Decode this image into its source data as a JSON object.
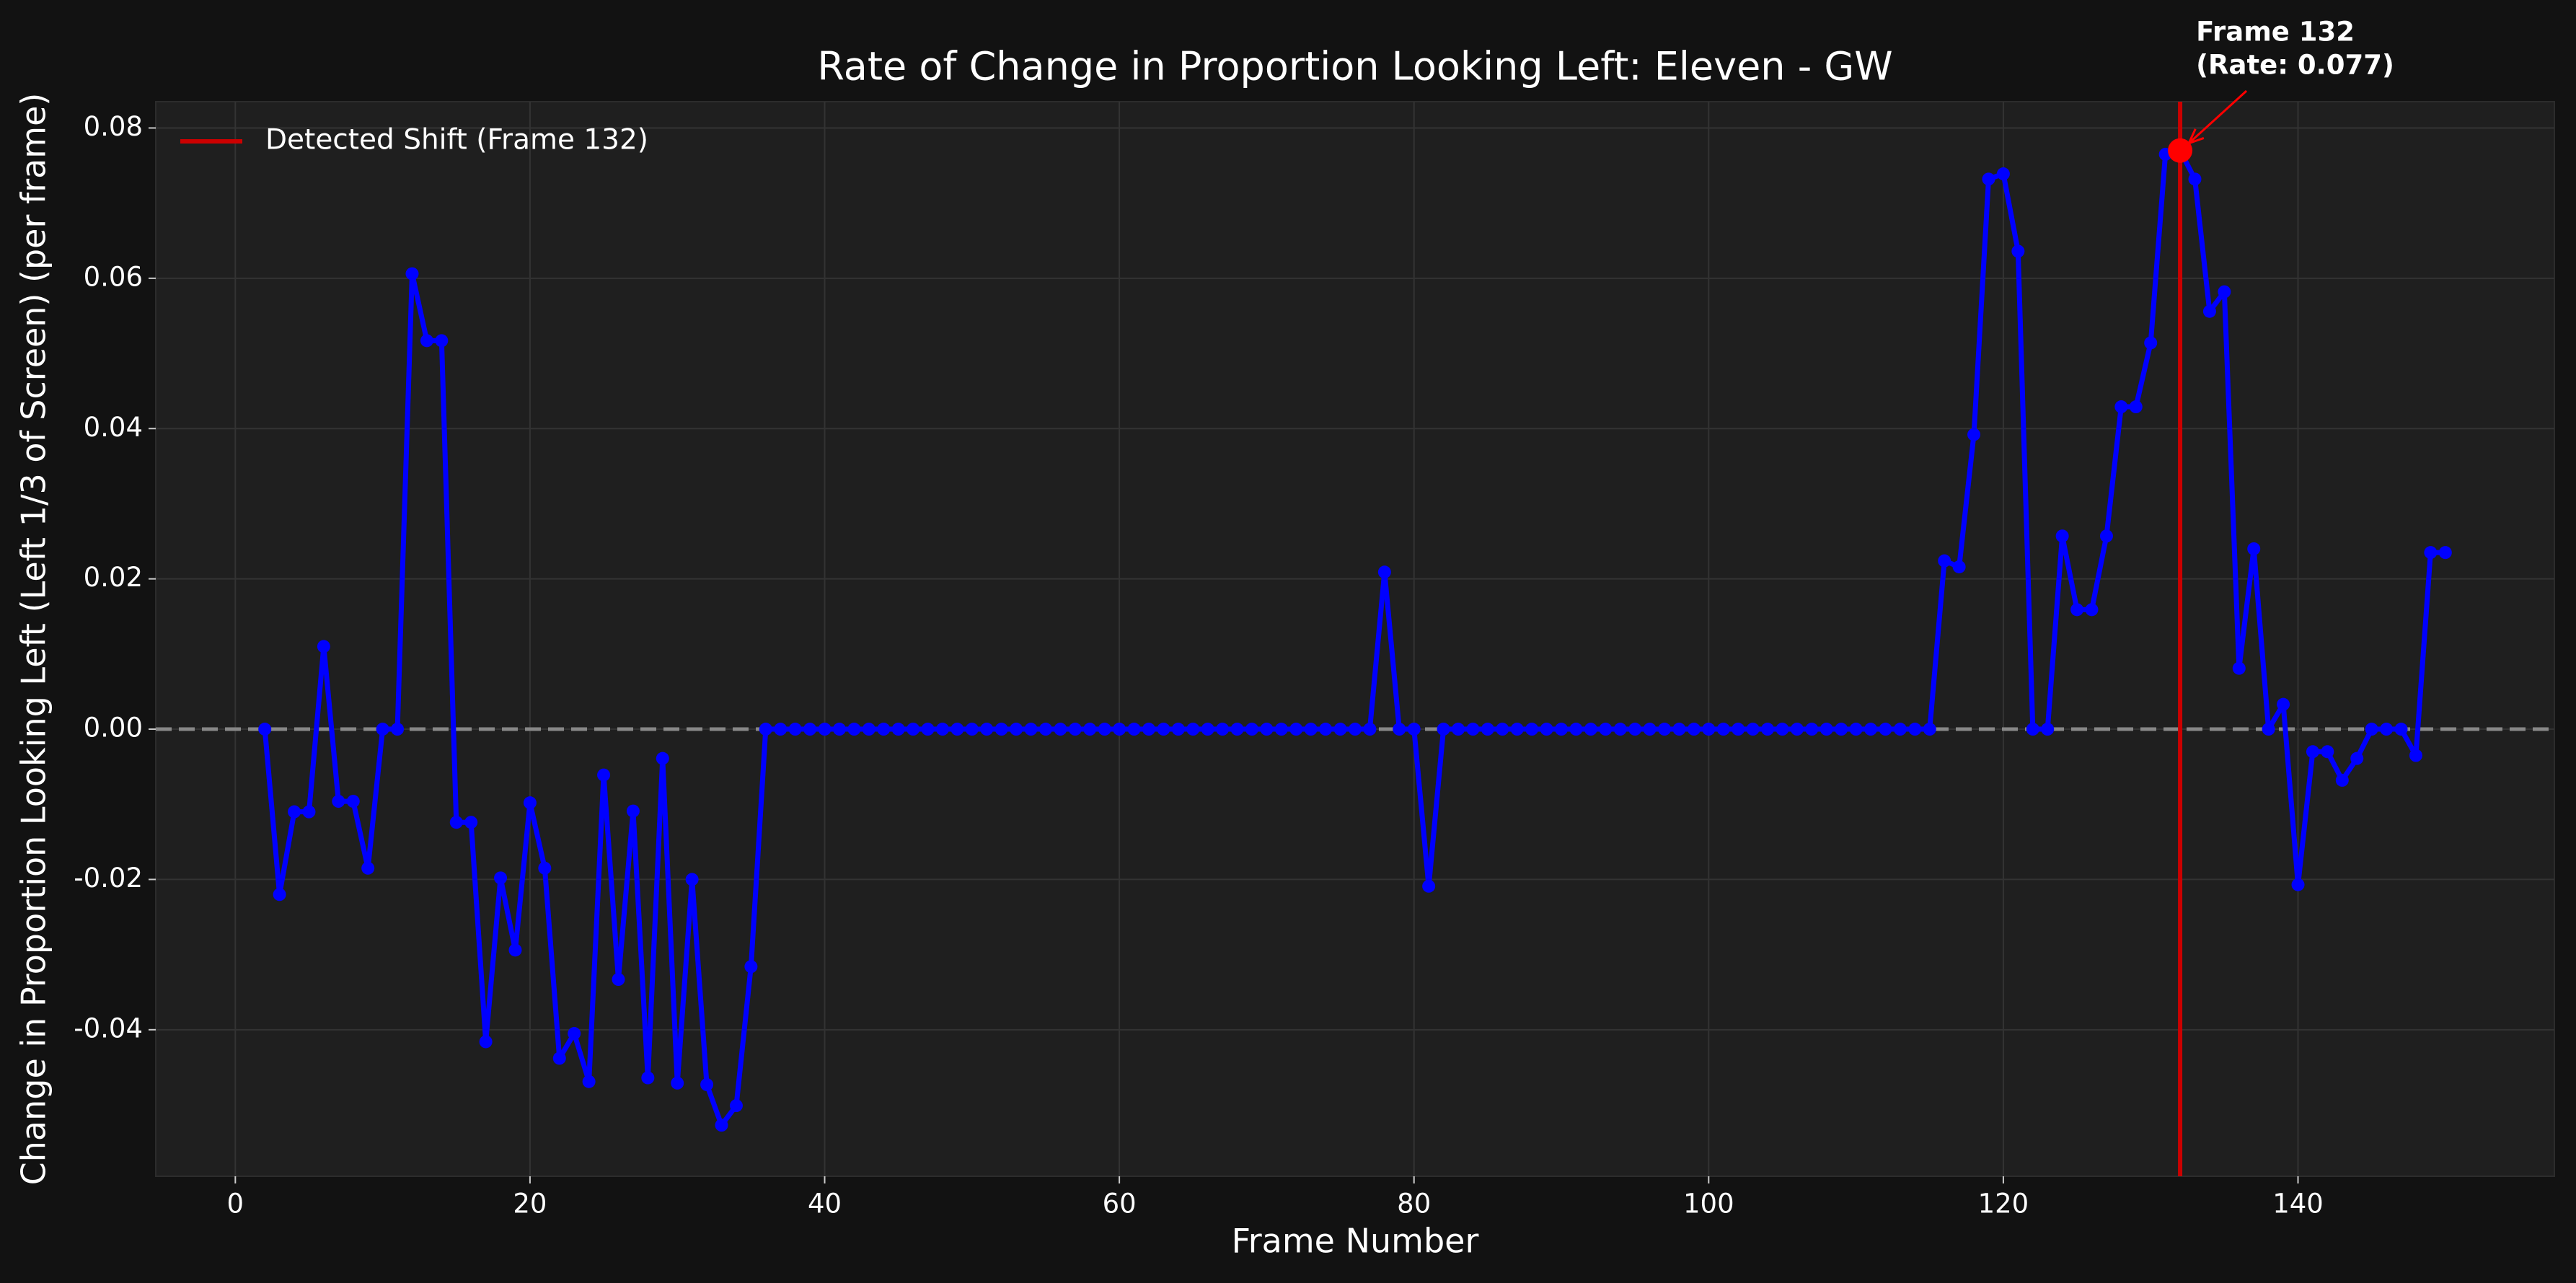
{
  "chart_data": {
    "type": "line",
    "title": "Rate of Change in Proportion Looking Left: Eleven - GW",
    "xlabel": "Frame Number",
    "ylabel": "Change in Proportion Looking Left (Left 1/3 of Screen) (per frame)",
    "x": [
      2,
      3,
      4,
      5,
      6,
      7,
      8,
      9,
      10,
      11,
      12,
      13,
      14,
      15,
      16,
      17,
      18,
      19,
      20,
      21,
      22,
      23,
      24,
      25,
      26,
      27,
      28,
      29,
      30,
      31,
      32,
      33,
      34,
      35,
      36,
      37,
      38,
      39,
      40,
      41,
      42,
      43,
      44,
      45,
      46,
      47,
      48,
      49,
      50,
      51,
      52,
      53,
      54,
      55,
      56,
      57,
      58,
      59,
      60,
      61,
      62,
      63,
      64,
      65,
      66,
      67,
      68,
      69,
      70,
      71,
      72,
      73,
      74,
      75,
      76,
      77,
      78,
      79,
      80,
      81,
      82,
      83,
      84,
      85,
      86,
      87,
      88,
      89,
      90,
      91,
      92,
      93,
      94,
      95,
      96,
      97,
      98,
      99,
      100,
      101,
      102,
      103,
      104,
      105,
      106,
      107,
      108,
      109,
      110,
      111,
      112,
      113,
      114,
      115,
      116,
      117,
      118,
      119,
      120,
      121,
      122,
      123,
      124,
      125,
      126,
      127,
      128,
      129,
      130,
      131,
      132,
      133,
      134,
      135,
      136,
      137,
      138,
      139,
      140,
      141,
      142,
      143,
      144,
      145,
      146,
      147,
      148,
      149,
      150
    ],
    "series": [
      {
        "color": "#0000ff",
        "values": [
          0,
          -0.022,
          -0.011,
          -0.011,
          0.011,
          -0.0096,
          -0.0096,
          -0.0185,
          0,
          0,
          0.0606,
          0.0517,
          0.0517,
          -0.0124,
          -0.0124,
          -0.0416,
          -0.0198,
          -0.0294,
          -0.0098,
          -0.0185,
          -0.0438,
          -0.0405,
          -0.0469,
          -0.0061,
          -0.0333,
          -0.0109,
          -0.0464,
          -0.0039,
          -0.0471,
          -0.02,
          -0.0473,
          -0.0527,
          -0.0501,
          -0.0316,
          0,
          0,
          0,
          0,
          0,
          0,
          0,
          0,
          0,
          0,
          0,
          0,
          0,
          0,
          0,
          0,
          0,
          0,
          0,
          0,
          0,
          0,
          0,
          0,
          0,
          0,
          0,
          0,
          0,
          0,
          0,
          0,
          0,
          0,
          0,
          0,
          0,
          0,
          0,
          0,
          0,
          0,
          0.0209,
          0,
          0,
          -0.0209,
          0,
          0,
          0,
          0,
          0,
          0,
          0,
          0,
          0,
          0,
          0,
          0,
          0,
          0,
          0,
          0,
          0,
          0,
          0,
          0,
          0,
          0,
          0,
          0,
          0,
          0,
          0,
          0,
          0,
          0,
          0,
          0,
          0,
          0,
          0.0224,
          0.0216,
          0.0392,
          0.0732,
          0.0739,
          0.0636,
          0,
          0,
          0.0257,
          0.0159,
          0.0159,
          0.0257,
          0.0429,
          0.0429,
          0.0514,
          0.0765,
          0.077,
          0.0732,
          0.0556,
          0.0582,
          0.0081,
          0.024,
          0,
          0.0033,
          -0.0207,
          -0.003,
          -0.003,
          -0.0068,
          -0.0039,
          0,
          0,
          0,
          -0.0035,
          0.0235,
          0.0235
        ]
      }
    ],
    "xlim": [
      -5.4,
      157.4
    ],
    "xticks": [
      0,
      20,
      40,
      60,
      80,
      100,
      120,
      140
    ],
    "ylim": [
      -0.0595,
      0.0835
    ],
    "yticks": [
      -0.04,
      -0.02,
      {
        "value": 0,
        "label": "0.00"
      },
      0.02,
      0.04,
      0.06,
      0.08
    ],
    "grid": true,
    "legend": "upper left",
    "hline": {
      "y": 0,
      "color": "#888888",
      "style": "dashed"
    },
    "vline": {
      "x": 132,
      "color": "#cc0000",
      "label": "Detected Shift (Frame 132)"
    },
    "highlight": {
      "x": 132,
      "y": 0.077,
      "color": "#ff0000",
      "text": [
        "Frame 132",
        "(Rate: 0.077)"
      ]
    }
  }
}
